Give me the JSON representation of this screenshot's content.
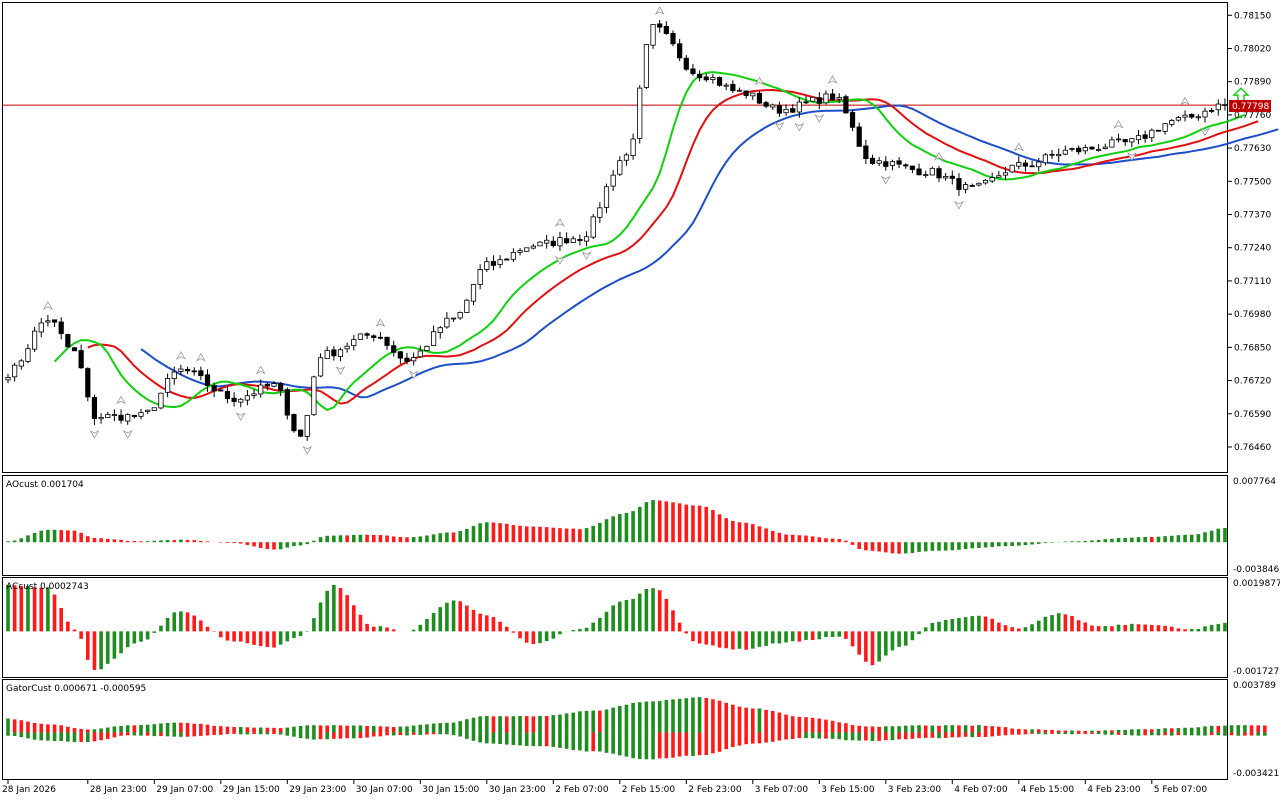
{
  "chart_data": {
    "type": "candlestick",
    "symbol_price_tag": "0.77798",
    "current_price": 0.77798,
    "colors": {
      "background": "#ffffff",
      "frame": "#000000",
      "candle_bull": "#ffffff",
      "candle_bear": "#000000",
      "jaw": "#1e4fc8",
      "teeth": "#e01010",
      "lips": "#10d010",
      "ind_up": "#1e8c1e",
      "ind_down": "#ff1a1a",
      "price_line": "#c00000",
      "arrow_signal": "#22cc22",
      "fractal": "#9a9a9a"
    },
    "main": {
      "ylim": [
        0.7636,
        0.782
      ],
      "yticks": [
        "0.78150",
        "0.78020",
        "0.77890",
        "0.77760",
        "0.77630",
        "0.77500",
        "0.77370",
        "0.77240",
        "0.77110",
        "0.76980",
        "0.76850",
        "0.76720",
        "0.76590",
        "0.76460"
      ],
      "signal_arrow": "up"
    },
    "x_ticks": [
      "28 Jan 2026",
      "28 Jan 23:00",
      "29 Jan 07:00",
      "29 Jan 15:00",
      "29 Jan 23:00",
      "30 Jan 07:00",
      "30 Jan 15:00",
      "30 Jan 23:00",
      "2 Feb 07:00",
      "2 Feb 15:00",
      "2 Feb 23:00",
      "3 Feb 07:00",
      "3 Feb 15:00",
      "3 Feb 23:00",
      "4 Feb 07:00",
      "4 Feb 15:00",
      "4 Feb 23:00",
      "5 Feb 07:00"
    ],
    "indicators": [
      {
        "label": "AOcust 0.001704",
        "max_label": "0.007764",
        "min_label": "-0.003846",
        "ylim": [
          -0.003846,
          0.007764
        ]
      },
      {
        "label": "ACcust 0.0002743",
        "max_label": "0.0019877",
        "min_label": "-0.0017272",
        "ylim": [
          -0.0017272,
          0.0019877
        ]
      },
      {
        "label": "GatorCust 0.000671 -0.000595",
        "max_label": "0.003789",
        "min_label": "-0.003421",
        "ylim": [
          -0.003421,
          0.003789
        ]
      }
    ],
    "candles_knots": [
      [
        0,
        0.7675
      ],
      [
        6,
        0.7696
      ],
      [
        10,
        0.7683
      ],
      [
        13,
        0.7658
      ],
      [
        20,
        0.7658
      ],
      [
        26,
        0.7676
      ],
      [
        34,
        0.7665
      ],
      [
        40,
        0.767
      ],
      [
        44,
        0.765
      ],
      [
        47,
        0.7682
      ],
      [
        55,
        0.769
      ],
      [
        60,
        0.768
      ],
      [
        67,
        0.7696
      ],
      [
        72,
        0.7717
      ],
      [
        79,
        0.7725
      ],
      [
        86,
        0.7728
      ],
      [
        93,
        0.776
      ],
      [
        97,
        0.781
      ],
      [
        104,
        0.7792
      ],
      [
        110,
        0.7785
      ],
      [
        116,
        0.7778
      ],
      [
        124,
        0.7783
      ],
      [
        130,
        0.7758
      ],
      [
        138,
        0.7754
      ],
      [
        145,
        0.7747
      ],
      [
        152,
        0.7756
      ],
      [
        160,
        0.7762
      ],
      [
        168,
        0.7765
      ],
      [
        176,
        0.7774
      ],
      [
        183,
        0.778
      ]
    ],
    "ao_knots": [
      [
        0,
        0.0001
      ],
      [
        6,
        0.0015
      ],
      [
        10,
        0.0014
      ],
      [
        13,
        0.0005
      ],
      [
        20,
        0.0001
      ],
      [
        26,
        0.0003
      ],
      [
        34,
        -0.0001
      ],
      [
        40,
        -0.0009
      ],
      [
        44,
        -0.0004
      ],
      [
        48,
        0.0008
      ],
      [
        55,
        0.0009
      ],
      [
        60,
        0.0006
      ],
      [
        67,
        0.0012
      ],
      [
        72,
        0.0024
      ],
      [
        79,
        0.0019
      ],
      [
        86,
        0.0016
      ],
      [
        93,
        0.0035
      ],
      [
        97,
        0.0051
      ],
      [
        104,
        0.0044
      ],
      [
        110,
        0.0024
      ],
      [
        118,
        0.0009
      ],
      [
        125,
        0.0004
      ],
      [
        129,
        -0.001
      ],
      [
        134,
        -0.0014
      ],
      [
        140,
        -0.001
      ],
      [
        150,
        -0.0005
      ],
      [
        160,
        0.0001
      ],
      [
        170,
        0.0006
      ],
      [
        178,
        0.0009
      ],
      [
        183,
        0.0017
      ]
    ],
    "ac_knots": [
      [
        0,
        0.0018
      ],
      [
        6,
        0.0017
      ],
      [
        10,
        0.0001
      ],
      [
        13,
        -0.0015
      ],
      [
        20,
        -0.0004
      ],
      [
        26,
        0.0008
      ],
      [
        34,
        -0.0004
      ],
      [
        40,
        -0.0006
      ],
      [
        44,
        -0.0002
      ],
      [
        49,
        0.0018
      ],
      [
        55,
        0.0002
      ],
      [
        60,
        0.0
      ],
      [
        67,
        0.0012
      ],
      [
        72,
        0.0006
      ],
      [
        79,
        -0.0005
      ],
      [
        86,
        0.0001
      ],
      [
        93,
        0.0012
      ],
      [
        97,
        0.0017
      ],
      [
        104,
        -0.0005
      ],
      [
        110,
        -0.0007
      ],
      [
        118,
        -0.0004
      ],
      [
        125,
        -0.0002
      ],
      [
        130,
        -0.0013
      ],
      [
        134,
        -0.0006
      ],
      [
        140,
        0.0004
      ],
      [
        146,
        0.0006
      ],
      [
        152,
        0.0001
      ],
      [
        158,
        0.0007
      ],
      [
        164,
        0.0002
      ],
      [
        170,
        0.0003
      ],
      [
        178,
        0.0001
      ],
      [
        183,
        0.0003
      ]
    ],
    "gator_up_knots": [
      [
        0,
        0.001
      ],
      [
        6,
        0.0006
      ],
      [
        12,
        0.0002
      ],
      [
        18,
        0.0005
      ],
      [
        26,
        0.0007
      ],
      [
        34,
        0.0004
      ],
      [
        40,
        0.0003
      ],
      [
        46,
        0.0005
      ],
      [
        52,
        0.0005
      ],
      [
        58,
        0.0004
      ],
      [
        66,
        0.0007
      ],
      [
        72,
        0.0012
      ],
      [
        80,
        0.0012
      ],
      [
        88,
        0.0016
      ],
      [
        96,
        0.0023
      ],
      [
        104,
        0.0026
      ],
      [
        112,
        0.0018
      ],
      [
        120,
        0.0011
      ],
      [
        130,
        0.0004
      ],
      [
        138,
        0.0005
      ],
      [
        146,
        0.0005
      ],
      [
        154,
        0.0002
      ],
      [
        162,
        0.0001
      ],
      [
        170,
        0.0002
      ],
      [
        176,
        0.0003
      ],
      [
        183,
        0.0005
      ]
    ],
    "gator_down_knots": [
      [
        0,
        -0.0002
      ],
      [
        6,
        -0.0006
      ],
      [
        12,
        -0.0007
      ],
      [
        18,
        -0.0002
      ],
      [
        26,
        -0.0003
      ],
      [
        34,
        -0.0001
      ],
      [
        40,
        -0.0001
      ],
      [
        46,
        -0.0005
      ],
      [
        52,
        -0.0004
      ],
      [
        58,
        -0.0002
      ],
      [
        66,
        -0.0001
      ],
      [
        72,
        -0.0008
      ],
      [
        80,
        -0.001
      ],
      [
        88,
        -0.0014
      ],
      [
        96,
        -0.002
      ],
      [
        104,
        -0.0017
      ],
      [
        112,
        -0.0008
      ],
      [
        120,
        -0.0004
      ],
      [
        130,
        -0.0006
      ],
      [
        138,
        -0.0004
      ],
      [
        146,
        -0.0003
      ],
      [
        154,
        -0.0001
      ],
      [
        162,
        -0.0001
      ],
      [
        170,
        -0.0002
      ],
      [
        176,
        -0.0002
      ],
      [
        183,
        -0.0002
      ]
    ]
  }
}
